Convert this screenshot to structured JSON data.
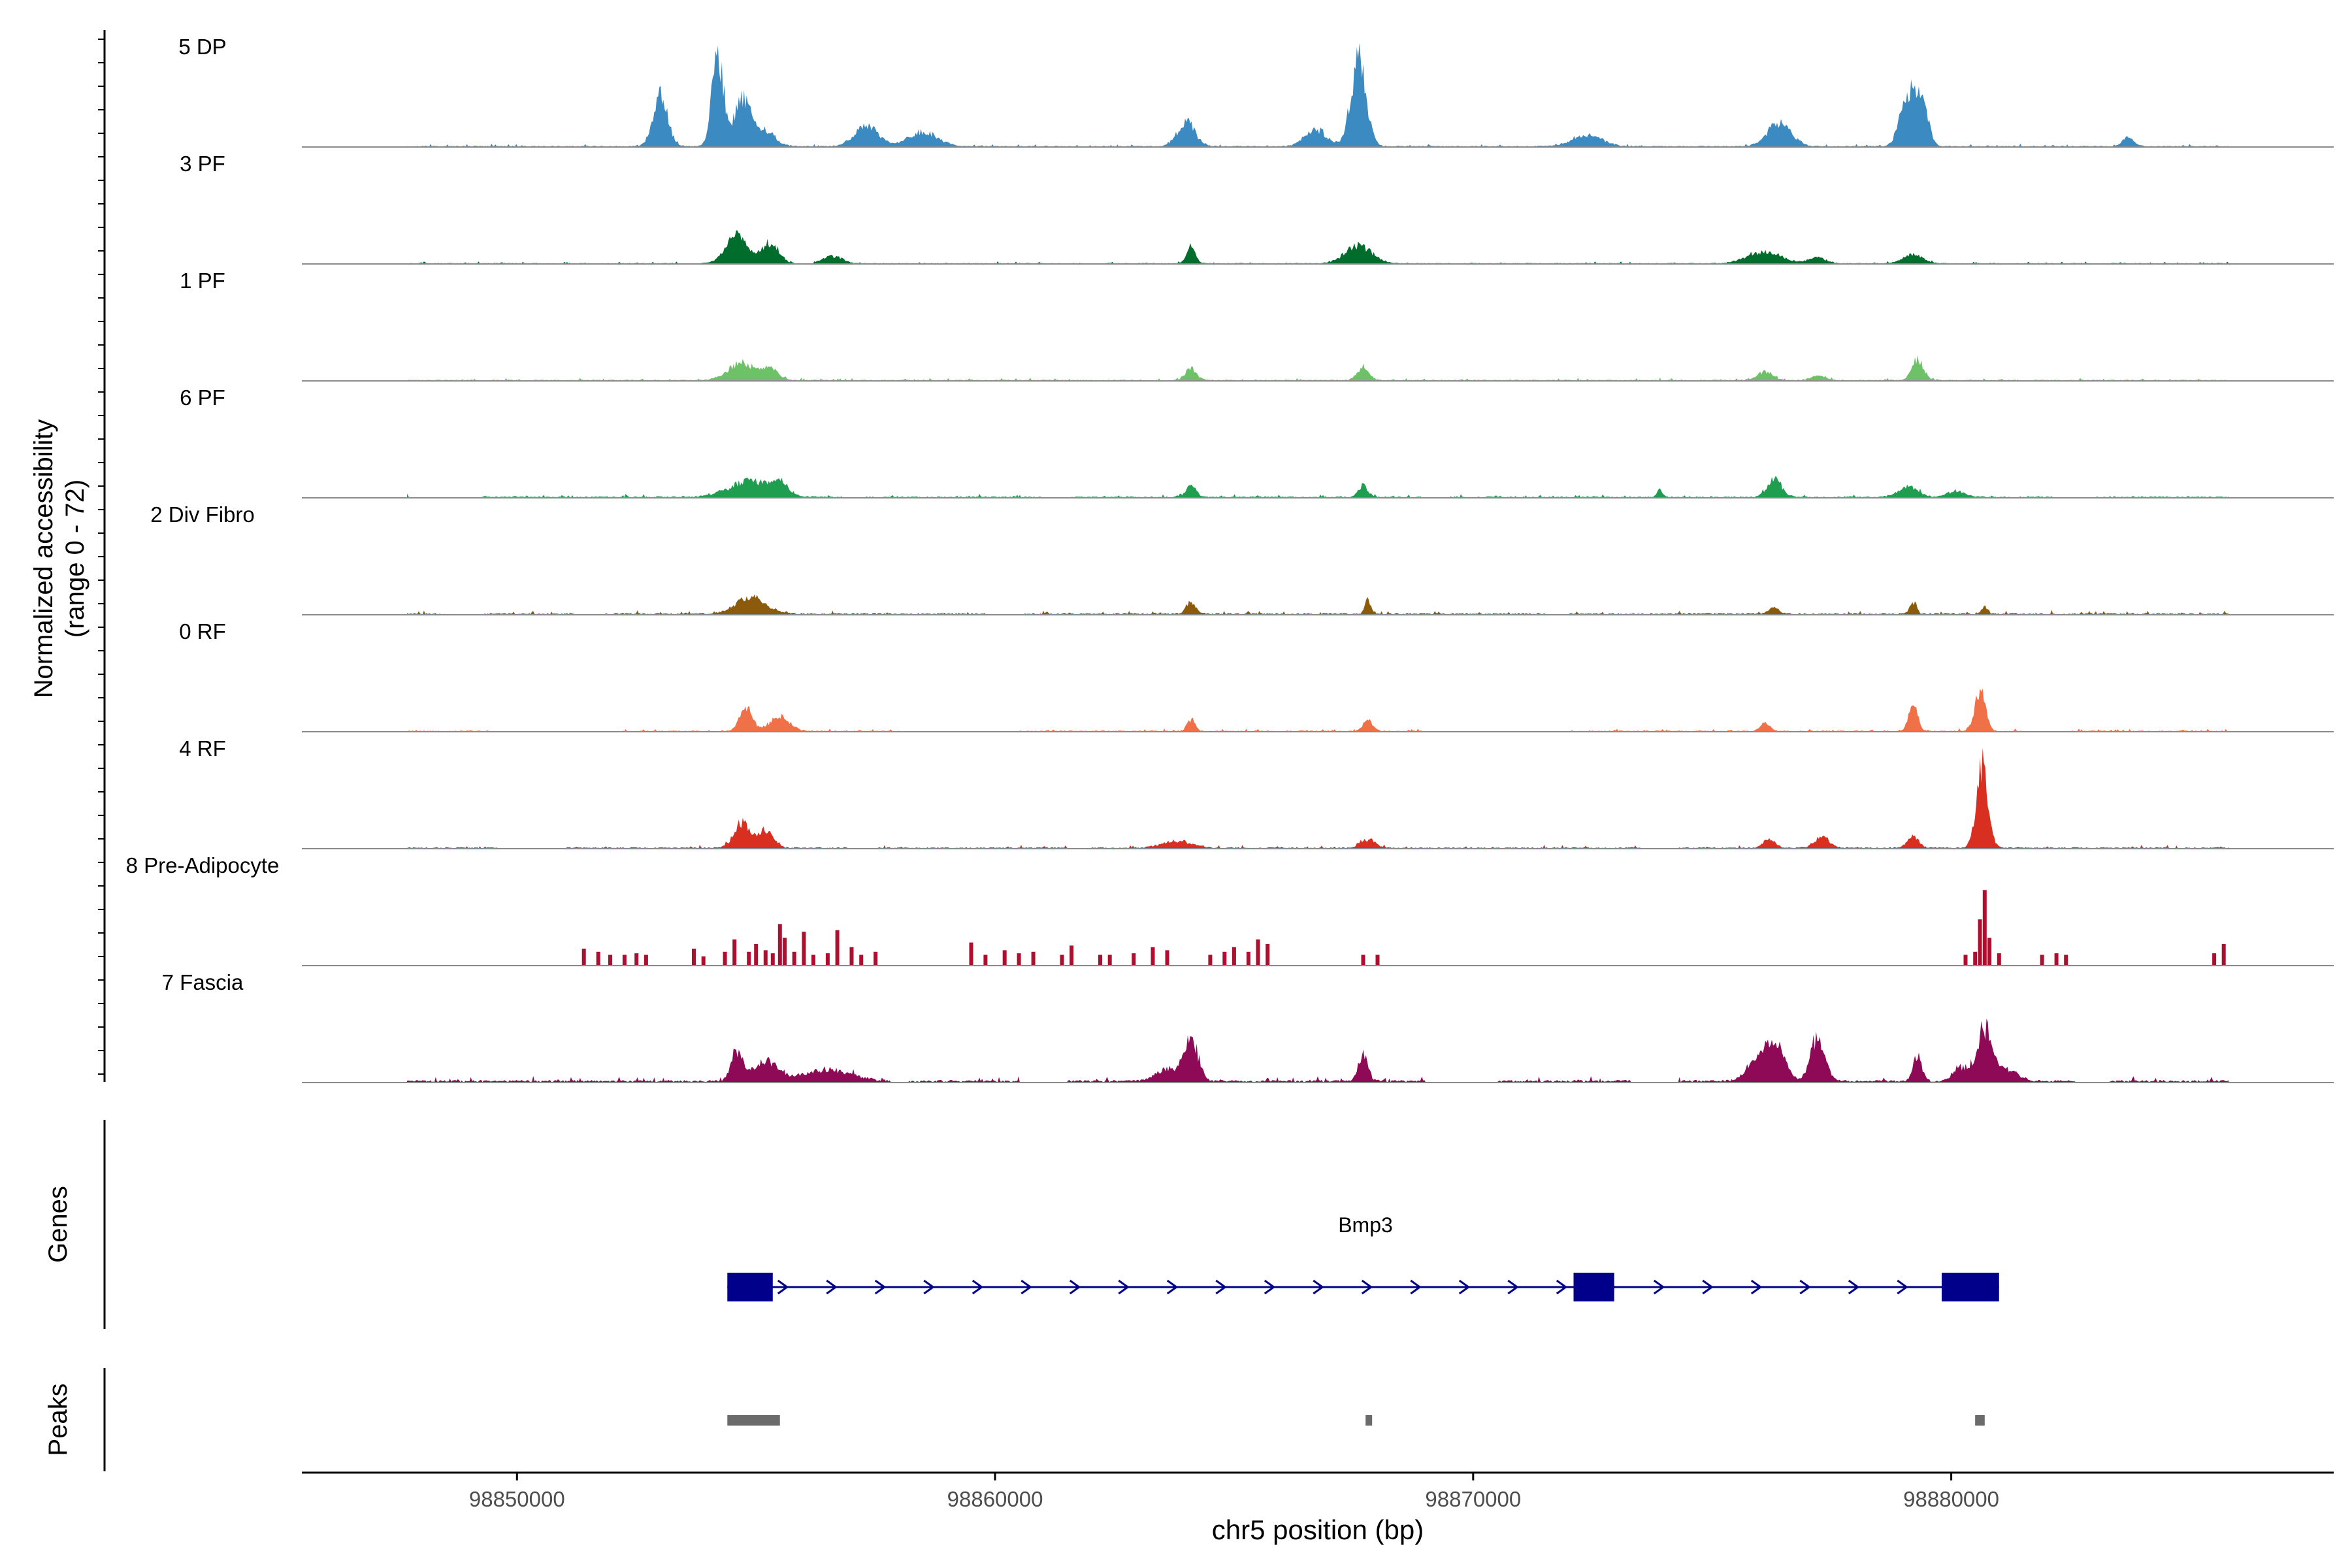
{
  "chart_data": {
    "type": "area",
    "title": "",
    "xlabel": "chr5 position (bp)",
    "ylabel_line1": "Normalized accessibility",
    "ylabel_line2": "(range 0 - 72)",
    "ylim": [
      0,
      72
    ],
    "xlim": [
      98845500,
      98888000
    ],
    "x_ticks": [
      98850000,
      98860000,
      98870000,
      98880000
    ],
    "x_tick_labels": [
      "98850000",
      "98860000",
      "98870000",
      "98880000"
    ],
    "data_start": 98847700,
    "data_end": 98885800,
    "tracks": [
      {
        "name": "5 DP",
        "color": "#3B8BC2",
        "style": "area",
        "base": 0.5,
        "peaks": [
          [
            98853000,
            35,
            150
          ],
          [
            98854200,
            64,
            120
          ],
          [
            98854700,
            30,
            160
          ],
          [
            98855100,
            12,
            250
          ],
          [
            98857300,
            14,
            250
          ],
          [
            98858500,
            10,
            300
          ],
          [
            98864000,
            17,
            180
          ],
          [
            98866700,
            12,
            220
          ],
          [
            98867600,
            58,
            160
          ],
          [
            98872400,
            8,
            300
          ],
          [
            98876400,
            16,
            250
          ],
          [
            98879100,
            36,
            160
          ],
          [
            98879400,
            25,
            130
          ],
          [
            98883700,
            6,
            120
          ]
        ],
        "gaps": []
      },
      {
        "name": "3 PF",
        "color": "#006D2C",
        "style": "area",
        "base": 0.4,
        "peaks": [
          [
            98854600,
            20,
            220
          ],
          [
            98855300,
            14,
            180
          ],
          [
            98856600,
            5,
            200
          ],
          [
            98864100,
            12,
            90
          ],
          [
            98867600,
            12,
            280
          ],
          [
            98876100,
            8,
            350
          ],
          [
            98877200,
            4,
            180
          ],
          [
            98879200,
            6,
            200
          ]
        ],
        "gaps": [
          [
            98855800,
            98856200
          ],
          [
            98861800,
            98862300
          ],
          [
            98869500,
            98869800
          ]
        ]
      },
      {
        "name": "1 PF",
        "color": "#6DC268",
        "style": "area",
        "base": 0.5,
        "peaks": [
          [
            98854700,
            12,
            280
          ],
          [
            98855300,
            8,
            160
          ],
          [
            98864100,
            8,
            120
          ],
          [
            98867700,
            9,
            120
          ],
          [
            98876100,
            6,
            150
          ],
          [
            98877200,
            3,
            150
          ],
          [
            98879300,
            14,
            120
          ]
        ],
        "gaps": []
      },
      {
        "name": "6 PF",
        "color": "#1F9E50",
        "style": "area",
        "base": 0.6,
        "peaks": [
          [
            98854900,
            11,
            450
          ],
          [
            98855500,
            7,
            150
          ],
          [
            98864100,
            8,
            100
          ],
          [
            98867700,
            8,
            100
          ],
          [
            98873900,
            5,
            60
          ],
          [
            98876300,
            12,
            150
          ],
          [
            98879100,
            7,
            200
          ],
          [
            98880100,
            4,
            180
          ]
        ],
        "gaps": [
          [
            98848000,
            98849200
          ],
          [
            98856800,
            98857300
          ],
          [
            98861000,
            98861600
          ],
          [
            98868900,
            98869500
          ],
          [
            98882200,
            98883000
          ]
        ]
      },
      {
        "name": "2 Div Fibro",
        "color": "#8B5A0A",
        "style": "area",
        "base": 0.7,
        "peaks": [
          [
            98854900,
            12,
            300
          ],
          [
            98864100,
            8,
            100
          ],
          [
            98867800,
            10,
            60
          ],
          [
            98876300,
            5,
            100
          ],
          [
            98879200,
            8,
            70
          ],
          [
            98880700,
            5,
            60
          ]
        ],
        "gaps": [
          [
            98848500,
            98849300
          ],
          [
            98851200,
            98851800
          ],
          [
            98859800,
            98860600
          ],
          [
            98871500,
            98872000
          ]
        ]
      },
      {
        "name": "0 RF",
        "color": "#F07147",
        "style": "area",
        "base": 0.5,
        "peaks": [
          [
            98854800,
            17,
            130
          ],
          [
            98855500,
            10,
            200
          ],
          [
            98864100,
            8,
            80
          ],
          [
            98867800,
            7,
            100
          ],
          [
            98876100,
            6,
            100
          ],
          [
            98879200,
            20,
            90
          ],
          [
            98880600,
            28,
            110
          ]
        ],
        "gaps": [
          [
            98849500,
            98852000
          ],
          [
            98858000,
            98860500
          ],
          [
            98869000,
            98872000
          ],
          [
            98881500,
            98882500
          ]
        ]
      },
      {
        "name": "4 RF",
        "color": "#D82F20",
        "style": "area",
        "base": 0.6,
        "peaks": [
          [
            98854700,
            18,
            160
          ],
          [
            98855200,
            12,
            160
          ],
          [
            98863800,
            5,
            300
          ],
          [
            98867800,
            6,
            150
          ],
          [
            98876200,
            6,
            120
          ],
          [
            98877300,
            8,
            150
          ],
          [
            98879200,
            8,
            120
          ],
          [
            98880650,
            58,
            120
          ]
        ],
        "gaps": [
          [
            98849600,
            98851000
          ],
          [
            98856900,
            98857500
          ],
          [
            98861500,
            98862000
          ],
          [
            98873500,
            98874300
          ]
        ]
      },
      {
        "name": "8 Pre-Adipocyte",
        "color": "#B00E2E",
        "style": "bars",
        "bars": [
          [
            98851400,
            11
          ],
          [
            98851700,
            9
          ],
          [
            98851950,
            7
          ],
          [
            98852250,
            7
          ],
          [
            98852500,
            8
          ],
          [
            98852700,
            7
          ],
          [
            98853700,
            11
          ],
          [
            98853900,
            6
          ],
          [
            98854350,
            9
          ],
          [
            98854550,
            17
          ],
          [
            98854850,
            9
          ],
          [
            98855000,
            14
          ],
          [
            98855200,
            10
          ],
          [
            98855350,
            8
          ],
          [
            98855500,
            27
          ],
          [
            98855600,
            18
          ],
          [
            98855800,
            9
          ],
          [
            98856000,
            22
          ],
          [
            98856200,
            7
          ],
          [
            98856500,
            8
          ],
          [
            98856700,
            23
          ],
          [
            98857000,
            12
          ],
          [
            98857200,
            7
          ],
          [
            98857500,
            9
          ],
          [
            98859500,
            15
          ],
          [
            98859800,
            7
          ],
          [
            98860200,
            10
          ],
          [
            98860500,
            8
          ],
          [
            98860800,
            9
          ],
          [
            98861400,
            7
          ],
          [
            98861600,
            13
          ],
          [
            98862200,
            7
          ],
          [
            98862400,
            7
          ],
          [
            98862900,
            8
          ],
          [
            98863300,
            12
          ],
          [
            98863600,
            10
          ],
          [
            98864500,
            7
          ],
          [
            98864800,
            9
          ],
          [
            98865000,
            12
          ],
          [
            98865300,
            9
          ],
          [
            98865500,
            17
          ],
          [
            98865700,
            14
          ],
          [
            98867700,
            7
          ],
          [
            98868000,
            7
          ],
          [
            98880300,
            7
          ],
          [
            98880500,
            9
          ],
          [
            98880600,
            30
          ],
          [
            98880700,
            49
          ],
          [
            98880800,
            18
          ],
          [
            98881000,
            8
          ],
          [
            98881900,
            7
          ],
          [
            98882200,
            8
          ],
          [
            98882400,
            7
          ],
          [
            98885500,
            8
          ],
          [
            98885700,
            14
          ]
        ]
      },
      {
        "name": "7 Fascia",
        "color": "#8E0A57",
        "style": "area",
        "base": 1.0,
        "peaks": [
          [
            98854600,
            20,
            120
          ],
          [
            98855200,
            14,
            250
          ],
          [
            98856500,
            8,
            500
          ],
          [
            98864100,
            28,
            150
          ],
          [
            98863600,
            8,
            250
          ],
          [
            98867700,
            18,
            100
          ],
          [
            98876300,
            25,
            200
          ],
          [
            98875900,
            12,
            200
          ],
          [
            98877200,
            30,
            150
          ],
          [
            98879300,
            17,
            90
          ],
          [
            98880700,
            36,
            160
          ],
          [
            98880200,
            10,
            150
          ],
          [
            98881200,
            8,
            200
          ]
        ],
        "gaps": [
          [
            98857800,
            98858200
          ],
          [
            98860500,
            98861500
          ],
          [
            98869000,
            98870500
          ],
          [
            98873300,
            98874300
          ],
          [
            98882600,
            98883300
          ]
        ]
      }
    ],
    "genes_panel_label": "Genes",
    "peaks_panel_label": "Peaks",
    "gene": {
      "name": "Bmp3",
      "start": 98854400,
      "end": 98881000,
      "strand": "+",
      "color": "#00008B",
      "exons": [
        [
          98854400,
          98855350
        ],
        [
          98872100,
          98872950
        ],
        [
          98879800,
          98881000
        ]
      ]
    },
    "peak_regions": [
      [
        98854400,
        98855500
      ],
      [
        98867750,
        98867850
      ],
      [
        98880500,
        98880700
      ]
    ],
    "peak_color": "#6B6B6B"
  }
}
